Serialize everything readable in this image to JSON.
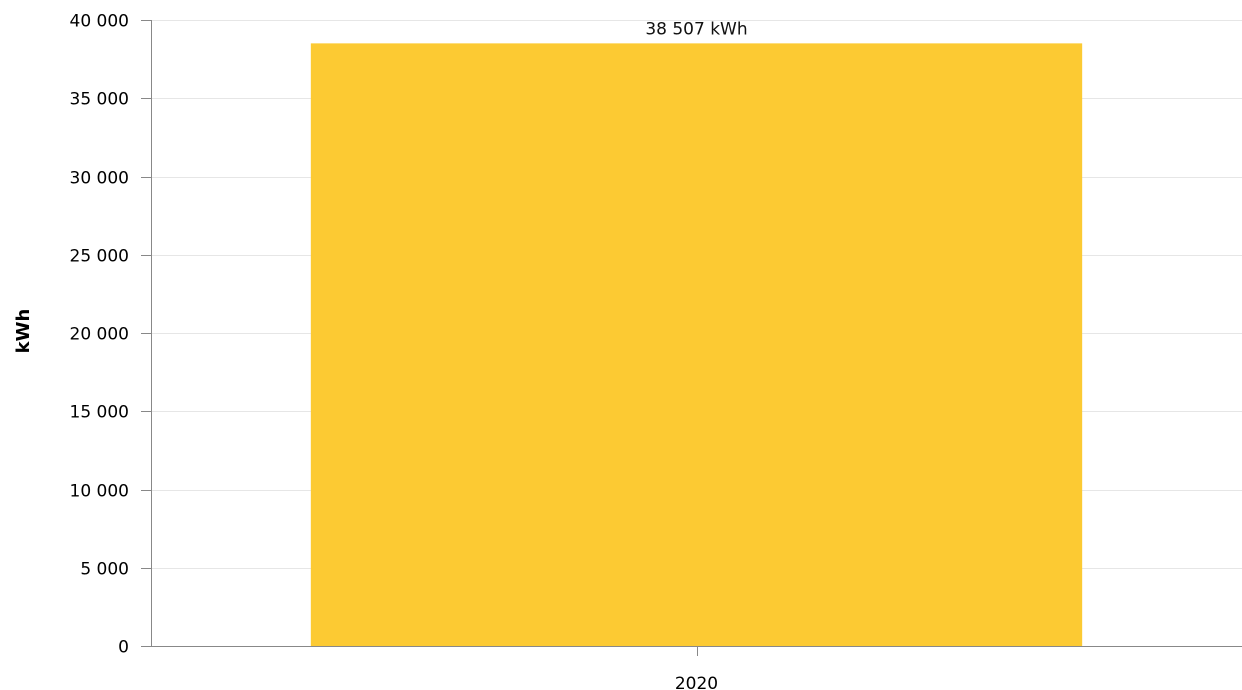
{
  "chart_data": {
    "type": "bar",
    "title": "",
    "xlabel": "",
    "ylabel": "kWh",
    "categories": [
      "2020"
    ],
    "series": [
      {
        "values": [
          38507
        ],
        "data_labels": [
          "38 507 kWh"
        ]
      }
    ],
    "ylim": [
      0,
      40000
    ],
    "y_ticks": [
      0,
      5000,
      10000,
      15000,
      20000,
      25000,
      30000,
      35000,
      40000
    ],
    "y_tick_labels": [
      "0",
      "5 000",
      "10 000",
      "15 000",
      "20 000",
      "25 000",
      "30 000",
      "35 000",
      "40 000"
    ],
    "grid": true,
    "legend": "none",
    "colors": {
      "bar": "#fcca33",
      "grid": "#e6e6e6",
      "axis": "#888888"
    }
  }
}
